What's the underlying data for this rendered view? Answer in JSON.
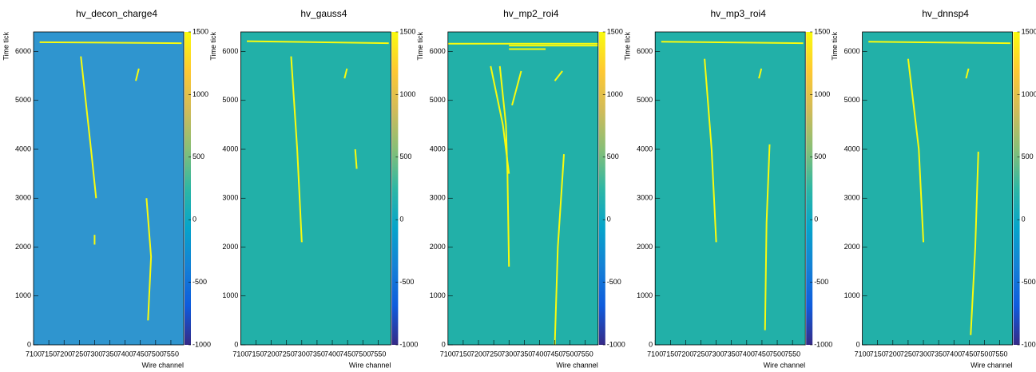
{
  "chart_data": [
    {
      "type": "heatmap",
      "title": "hv_decon_charge4",
      "x_label": "Wire channel",
      "y_label": "Time tick",
      "xlim": [
        7100,
        7592
      ],
      "ylim": [
        0,
        6400
      ],
      "zlim": [
        -1000,
        1500
      ],
      "xticks": [
        7100,
        7150,
        7200,
        7250,
        7300,
        7350,
        7400,
        7450,
        7500,
        7550
      ],
      "yticks": [
        0,
        1000,
        2000,
        3000,
        4000,
        5000,
        6000
      ],
      "zticks": [
        -1000,
        -500,
        0,
        500,
        1000,
        1500
      ],
      "colormap": [
        "#352a87",
        "#0f5cdd",
        "#1481d6",
        "#06a4ca",
        "#2eb7a4",
        "#87bf77",
        "#d1bb59",
        "#fec832",
        "#f9fb0e"
      ],
      "background_color": "#2f95cf",
      "track_color": "#f9fb0e",
      "tracks": [
        {
          "x": [
            7120,
            7585
          ],
          "y": [
            6190,
            6170
          ]
        },
        {
          "x": [
            7255,
            7290,
            7305
          ],
          "y": [
            5900,
            3900,
            3000
          ]
        },
        {
          "x": [
            7470,
            7485,
            7475
          ],
          "y": [
            3000,
            1800,
            500
          ]
        },
        {
          "x": [
            7445,
            7435
          ],
          "y": [
            5650,
            5400
          ]
        },
        {
          "x": [
            7300,
            7300
          ],
          "y": [
            2250,
            2050
          ]
        }
      ]
    },
    {
      "type": "heatmap",
      "title": "hv_gauss4",
      "x_label": "Wire channel",
      "y_label": "Time tick",
      "xlim": [
        7100,
        7592
      ],
      "ylim": [
        0,
        6400
      ],
      "zlim": [
        -1000,
        1500
      ],
      "xticks": [
        7100,
        7150,
        7200,
        7250,
        7300,
        7350,
        7400,
        7450,
        7500,
        7550
      ],
      "yticks": [
        0,
        1000,
        2000,
        3000,
        4000,
        5000,
        6000
      ],
      "zticks": [
        -1000,
        -500,
        0,
        500,
        1000,
        1500
      ],
      "colormap": [
        "#352a87",
        "#0f5cdd",
        "#1481d6",
        "#06a4ca",
        "#2eb7a4",
        "#87bf77",
        "#d1bb59",
        "#fec832",
        "#f9fb0e"
      ],
      "background_color": "#22b0a8",
      "track_color": "#f9fb0e",
      "tracks": [
        {
          "x": [
            7120,
            7585
          ],
          "y": [
            6210,
            6170
          ]
        },
        {
          "x": [
            7265,
            7285,
            7300
          ],
          "y": [
            5900,
            4000,
            2100
          ]
        },
        {
          "x": [
            7475,
            7480
          ],
          "y": [
            4000,
            3600
          ]
        },
        {
          "x": [
            7448,
            7440
          ],
          "y": [
            5650,
            5450
          ]
        }
      ]
    },
    {
      "type": "heatmap",
      "title": "hv_mp2_roi4",
      "x_label": "Wire channel",
      "y_label": "Time tick",
      "xlim": [
        7100,
        7592
      ],
      "ylim": [
        0,
        6400
      ],
      "zlim": [
        -1000,
        1500
      ],
      "xticks": [
        7100,
        7150,
        7200,
        7250,
        7300,
        7350,
        7400,
        7450,
        7500,
        7550
      ],
      "yticks": [
        0,
        1000,
        2000,
        3000,
        4000,
        5000,
        6000
      ],
      "zticks": [
        -1000,
        -500,
        0,
        500,
        1000,
        1500
      ],
      "colormap": [
        "#352a87",
        "#0f5cdd",
        "#1481d6",
        "#06a4ca",
        "#2eb7a4",
        "#87bf77",
        "#d1bb59",
        "#fec832",
        "#f9fb0e"
      ],
      "background_color": "#22b0a8",
      "track_color": "#f9fb0e",
      "tracks": [
        {
          "x": [
            7100,
            7592
          ],
          "y": [
            6160,
            6160
          ]
        },
        {
          "x": [
            7300,
            7592
          ],
          "y": [
            6120,
            6120
          ]
        },
        {
          "x": [
            7300,
            7420
          ],
          "y": [
            6050,
            6050
          ]
        },
        {
          "x": [
            7270,
            7290,
            7295,
            7300
          ],
          "y": [
            5700,
            4500,
            3500,
            1600
          ]
        },
        {
          "x": [
            7240,
            7280,
            7300
          ],
          "y": [
            5700,
            4500,
            3500
          ]
        },
        {
          "x": [
            7340,
            7310
          ],
          "y": [
            5600,
            4900
          ]
        },
        {
          "x": [
            7480,
            7460,
            7450
          ],
          "y": [
            3900,
            2000,
            0
          ]
        },
        {
          "x": [
            7450,
            7475
          ],
          "y": [
            5400,
            5600
          ]
        }
      ]
    },
    {
      "type": "heatmap",
      "title": "hv_mp3_roi4",
      "x_label": "Wire channel",
      "y_label": "Time tick",
      "xlim": [
        7100,
        7592
      ],
      "ylim": [
        0,
        6400
      ],
      "zlim": [
        -1000,
        1500
      ],
      "xticks": [
        7100,
        7150,
        7200,
        7250,
        7300,
        7350,
        7400,
        7450,
        7500,
        7550
      ],
      "yticks": [
        0,
        1000,
        2000,
        3000,
        4000,
        5000,
        6000
      ],
      "zticks": [
        -1000,
        -500,
        0,
        500,
        1000,
        1500
      ],
      "colormap": [
        "#352a87",
        "#0f5cdd",
        "#1481d6",
        "#06a4ca",
        "#2eb7a4",
        "#87bf77",
        "#d1bb59",
        "#fec832",
        "#f9fb0e"
      ],
      "background_color": "#22b0a8",
      "track_color": "#f9fb0e",
      "tracks": [
        {
          "x": [
            7120,
            7585
          ],
          "y": [
            6200,
            6170
          ]
        },
        {
          "x": [
            7262,
            7285,
            7300
          ],
          "y": [
            5850,
            4000,
            2100
          ]
        },
        {
          "x": [
            7475,
            7465,
            7460
          ],
          "y": [
            4100,
            2500,
            300
          ]
        },
        {
          "x": [
            7448,
            7440
          ],
          "y": [
            5650,
            5450
          ]
        }
      ]
    },
    {
      "type": "heatmap",
      "title": "hv_dnnsp4",
      "x_label": "Wire channel",
      "y_label": "Time tick",
      "xlim": [
        7100,
        7592
      ],
      "ylim": [
        0,
        6400
      ],
      "zlim": [
        -1000,
        1500
      ],
      "xticks": [
        7100,
        7150,
        7200,
        7250,
        7300,
        7350,
        7400,
        7450,
        7500,
        7550
      ],
      "yticks": [
        0,
        1000,
        2000,
        3000,
        4000,
        5000,
        6000
      ],
      "zticks": [
        -1000,
        -500,
        0,
        500,
        1000,
        1500
      ],
      "colormap": [
        "#352a87",
        "#0f5cdd",
        "#1481d6",
        "#06a4ca",
        "#2eb7a4",
        "#87bf77",
        "#d1bb59",
        "#fec832",
        "#f9fb0e"
      ],
      "background_color": "#22b0a8",
      "track_color": "#f9fb0e",
      "tracks": [
        {
          "x": [
            7120,
            7585
          ],
          "y": [
            6200,
            6170
          ]
        },
        {
          "x": [
            7250,
            7285,
            7300
          ],
          "y": [
            5850,
            4000,
            2100
          ]
        },
        {
          "x": [
            7480,
            7470,
            7455
          ],
          "y": [
            3950,
            2000,
            200
          ]
        },
        {
          "x": [
            7448,
            7440
          ],
          "y": [
            5650,
            5450
          ]
        }
      ]
    }
  ]
}
